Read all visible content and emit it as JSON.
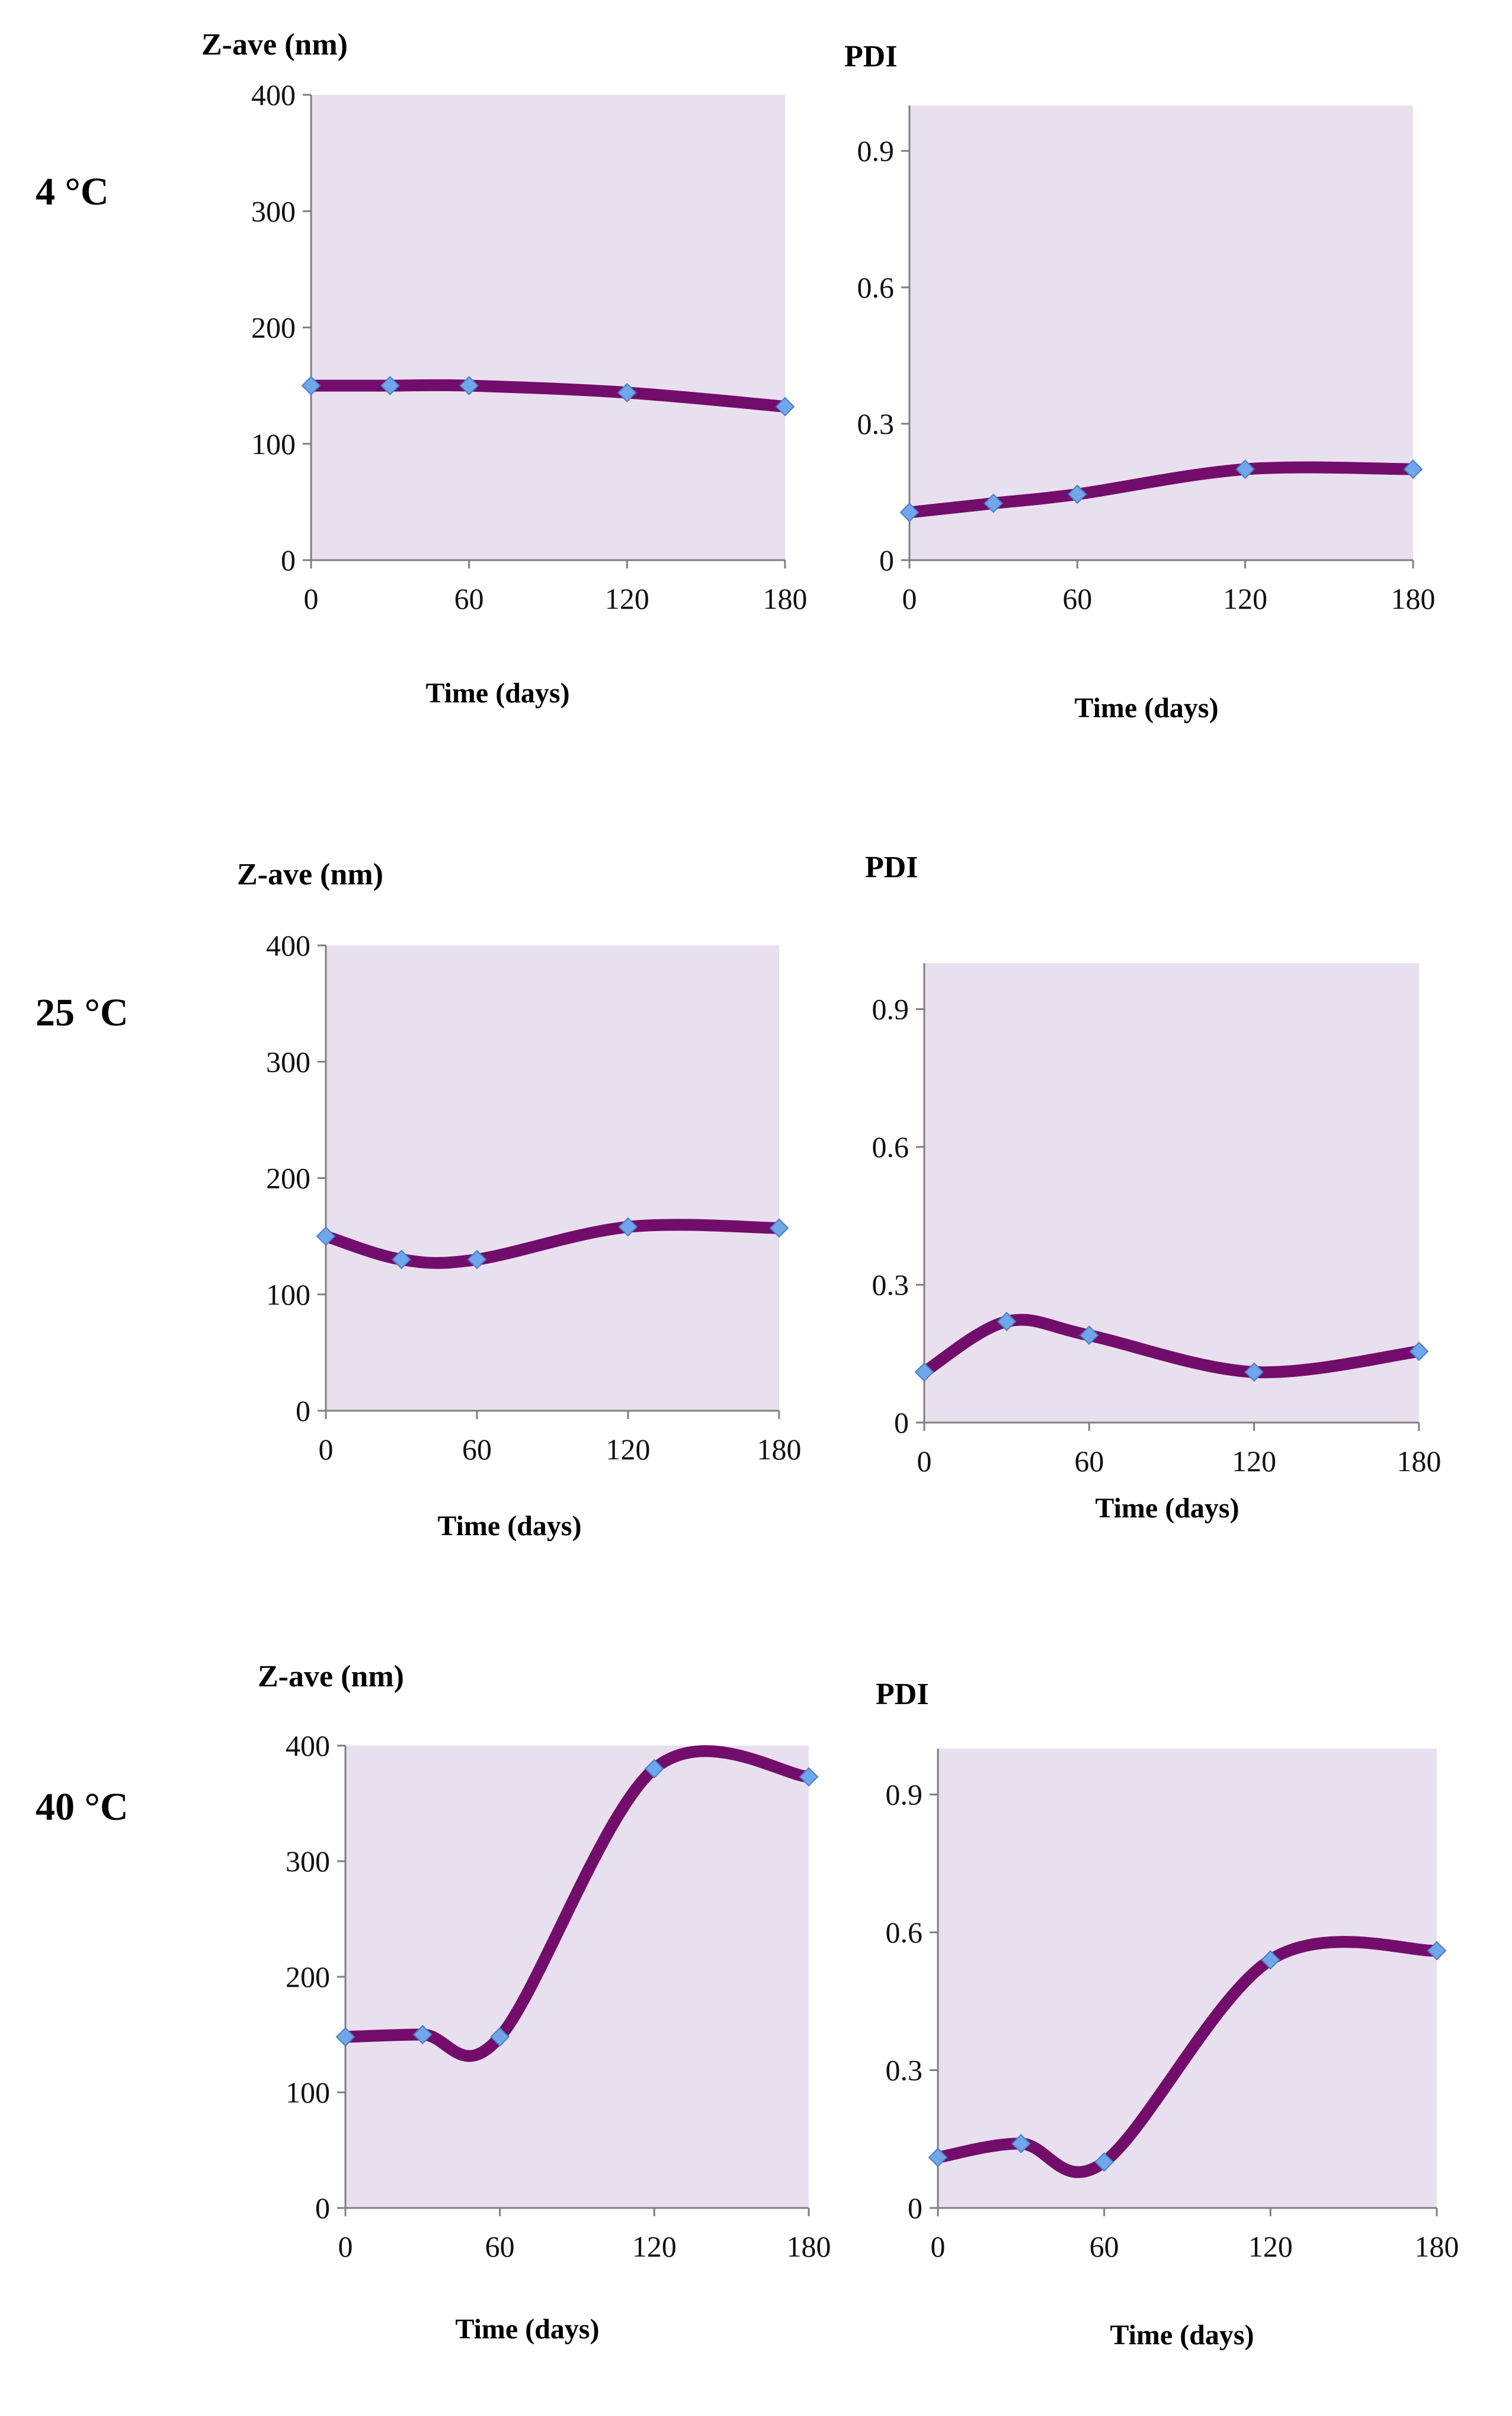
{
  "figure": {
    "plot_area_color": "#e9e0ef",
    "line_color": "#730d6b",
    "marker_color": "#6fa7ea"
  },
  "chart_data": [
    {
      "id": "z4",
      "type": "line",
      "row_label": "4 °C",
      "ylabel": "Z-ave (nm)",
      "xlabel": "Time  (days)",
      "x": [
        0,
        30,
        60,
        120,
        180
      ],
      "values": [
        150,
        150,
        150,
        144,
        132
      ],
      "xlim": [
        0,
        180
      ],
      "ylim": [
        0,
        400
      ],
      "xticks": [
        "0",
        "60",
        "120",
        "180"
      ],
      "yticks": [
        "0",
        "100",
        "200",
        "300",
        "400"
      ],
      "grid": false,
      "legend": "none"
    },
    {
      "id": "p4",
      "type": "line",
      "ylabel": "PDI",
      "xlabel": "Time  (days)",
      "x": [
        0,
        30,
        60,
        120,
        180
      ],
      "values": [
        0.105,
        0.125,
        0.145,
        0.2,
        0.2
      ],
      "xlim": [
        0,
        180
      ],
      "ylim": [
        0,
        1.0
      ],
      "xticks": [
        "0",
        "60",
        "120",
        "180"
      ],
      "yticks": [
        "0",
        "0.3",
        "0.6",
        "0.9"
      ],
      "grid": false,
      "legend": "none"
    },
    {
      "id": "z25",
      "type": "line",
      "row_label": "25 °C",
      "ylabel": "Z-ave (nm)",
      "xlabel": "Time  (days)",
      "x": [
        0,
        30,
        60,
        120,
        180
      ],
      "values": [
        150,
        130,
        130,
        158,
        157
      ],
      "xlim": [
        0,
        180
      ],
      "ylim": [
        0,
        400
      ],
      "xticks": [
        "0",
        "60",
        "120",
        "180"
      ],
      "yticks": [
        "0",
        "100",
        "200",
        "300",
        "400"
      ],
      "grid": false,
      "legend": "none"
    },
    {
      "id": "p25",
      "type": "line",
      "ylabel": "PDI",
      "xlabel": "Time  (days)",
      "x": [
        0,
        30,
        60,
        120,
        180
      ],
      "values": [
        0.11,
        0.22,
        0.19,
        0.11,
        0.155
      ],
      "xlim": [
        0,
        180
      ],
      "ylim": [
        0,
        1.0
      ],
      "xticks": [
        "0",
        "60",
        "120",
        "180"
      ],
      "yticks": [
        "0",
        "0.3",
        "0.6",
        "0.9"
      ],
      "grid": false,
      "legend": "none"
    },
    {
      "id": "z40",
      "type": "line",
      "row_label": "40 °C",
      "ylabel": "Z-ave (nm)",
      "xlabel": "Time  (days)",
      "x": [
        0,
        30,
        60,
        120,
        180
      ],
      "values": [
        148,
        150,
        148,
        380,
        373
      ],
      "xlim": [
        0,
        180
      ],
      "ylim": [
        0,
        400
      ],
      "xticks": [
        "0",
        "60",
        "120",
        "180"
      ],
      "yticks": [
        "0",
        "100",
        "200",
        "300",
        "400"
      ],
      "grid": false,
      "legend": "none"
    },
    {
      "id": "p40",
      "type": "line",
      "ylabel": "PDI",
      "xlabel": "Time  (days)",
      "x": [
        0,
        30,
        60,
        120,
        180
      ],
      "values": [
        0.11,
        0.14,
        0.1,
        0.54,
        0.56
      ],
      "xlim": [
        0,
        180
      ],
      "ylim": [
        0,
        1.0
      ],
      "xticks": [
        "0",
        "60",
        "120",
        "180"
      ],
      "yticks": [
        "0",
        "0.3",
        "0.6",
        "0.9"
      ],
      "grid": false,
      "legend": "none"
    }
  ]
}
